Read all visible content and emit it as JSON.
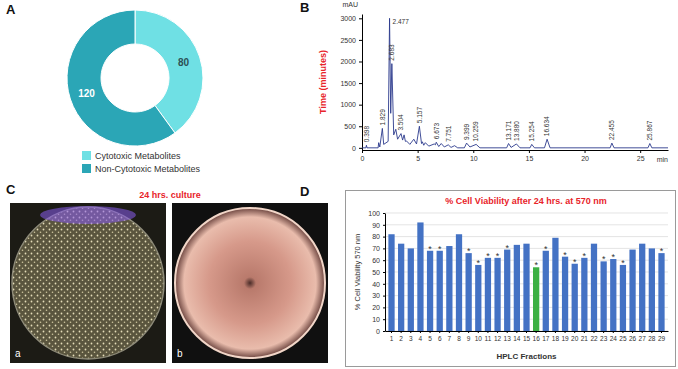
{
  "chart_data": [
    {
      "panel_label": "A",
      "type": "pie",
      "categories": [
        "Cytotoxic Metabolites",
        "Non-Cytotoxic Metabolites"
      ],
      "values": [
        80,
        120
      ],
      "colors": [
        "#6fe0e4",
        "#2ba6b6"
      ],
      "data_labels": true,
      "legend": "bottom"
    },
    {
      "panel_label": "B",
      "type": "line",
      "ylabel": "Time (minutes)",
      "y_unit": "mAU",
      "x_unit": "min",
      "color": "#2b3a8c",
      "x": [
        0,
        0.35,
        0.398,
        0.45,
        1.45,
        1.498,
        1.6,
        1.829,
        1.95,
        2.35,
        2.477,
        2.58,
        2.683,
        2.85,
        3.037,
        3.2,
        3.504,
        3.65,
        3.782,
        3.9,
        3.994,
        4.3,
        4.656,
        4.9,
        5.157,
        5.35,
        5.424,
        5.55,
        5.69,
        6.0,
        6.493,
        6.6,
        6.673,
        6.9,
        7.122,
        7.4,
        7.751,
        8.0,
        8.319,
        8.6,
        9.2,
        9.399,
        9.7,
        10.259,
        10.6,
        13.0,
        13.171,
        13.4,
        13.88,
        14.2,
        15.1,
        15.254,
        15.5,
        16.4,
        16.634,
        16.9,
        22.3,
        22.455,
        22.65,
        25.7,
        25.867,
        26.05,
        27.5
      ],
      "values": [
        0,
        0,
        60,
        0,
        0,
        120,
        20,
        450,
        80,
        150,
        3000,
        800,
        1950,
        300,
        430,
        200,
        330,
        180,
        300,
        150,
        160,
        80,
        200,
        90,
        500,
        100,
        140,
        60,
        120,
        40,
        90,
        70,
        130,
        30,
        100,
        20,
        70,
        10,
        50,
        0,
        0,
        110,
        20,
        80,
        0,
        0,
        100,
        10,
        90,
        0,
        0,
        80,
        0,
        0,
        200,
        0,
        0,
        110,
        0,
        0,
        100,
        0,
        0
      ],
      "xlim": [
        0,
        27.5
      ],
      "ylim": [
        -50,
        3100
      ],
      "xticks": [
        0,
        5,
        10,
        15,
        20,
        25
      ],
      "yticks": [
        0,
        500,
        1000,
        1500,
        2000,
        2500,
        3000
      ],
      "annotations": [
        {
          "x": 0.398,
          "y": 60,
          "text": "0.398"
        },
        {
          "x": 1.829,
          "y": 450,
          "text": "1.829"
        },
        {
          "x": 2.477,
          "y": 3000,
          "text": "2.477"
        },
        {
          "x": 2.683,
          "y": 1950,
          "text": "2.683"
        },
        {
          "x": 3.504,
          "y": 330,
          "text": "3.504"
        },
        {
          "x": 5.157,
          "y": 500,
          "text": "5.157"
        },
        {
          "x": 6.673,
          "y": 130,
          "text": "6.673"
        },
        {
          "x": 7.751,
          "y": 70,
          "text": "7.751"
        },
        {
          "x": 9.399,
          "y": 110,
          "text": "9.399"
        },
        {
          "x": 10.259,
          "y": 80,
          "text": "10.259"
        },
        {
          "x": 13.171,
          "y": 100,
          "text": "13.171"
        },
        {
          "x": 13.88,
          "y": 90,
          "text": "13.880"
        },
        {
          "x": 15.254,
          "y": 80,
          "text": "15.254"
        },
        {
          "x": 16.634,
          "y": 200,
          "text": "16.634"
        },
        {
          "x": 22.455,
          "y": 110,
          "text": "22.455"
        },
        {
          "x": 25.867,
          "y": 100,
          "text": "25.867"
        }
      ]
    },
    {
      "panel_label": "C",
      "type": "image",
      "title": "24 hrs. culture",
      "labels": [
        "a",
        "b"
      ]
    },
    {
      "panel_label": "D",
      "type": "bar",
      "title": "% Cell Viability after 24 hrs. at 570 nm",
      "xlabel": "HPLC Fractions",
      "ylabel": "% Cell Viability 570 nm",
      "categories": [
        "1",
        "2",
        "3",
        "4",
        "5",
        "6",
        "7",
        "8",
        "9",
        "10",
        "11",
        "12",
        "13",
        "14",
        "15",
        "16",
        "17",
        "18",
        "19",
        "20",
        "21",
        "22",
        "23",
        "24",
        "25",
        "26",
        "27",
        "28",
        "29"
      ],
      "values": [
        82,
        74,
        70,
        92,
        68,
        68,
        72,
        82,
        66,
        56,
        62,
        62,
        69,
        73,
        74,
        54,
        68,
        79,
        63,
        57,
        62,
        74,
        59,
        61,
        56,
        69,
        74,
        70,
        66
      ],
      "colors": [
        "#4472c4",
        "#4472c4",
        "#4472c4",
        "#4472c4",
        "#4472c4",
        "#4472c4",
        "#4472c4",
        "#4472c4",
        "#4472c4",
        "#4472c4",
        "#4472c4",
        "#4472c4",
        "#4472c4",
        "#4472c4",
        "#4472c4",
        "#3cb043",
        "#4472c4",
        "#4472c4",
        "#4472c4",
        "#4472c4",
        "#4472c4",
        "#4472c4",
        "#4472c4",
        "#4472c4",
        "#4472c4",
        "#4472c4",
        "#4472c4",
        "#4472c4",
        "#4472c4"
      ],
      "ylim": [
        0,
        100
      ],
      "yticks": [
        0,
        10,
        20,
        30,
        40,
        50,
        60,
        70,
        80,
        90,
        100
      ],
      "grid": true,
      "annotations": [
        {
          "category": "5",
          "text": "*"
        },
        {
          "category": "6",
          "text": "*"
        },
        {
          "category": "9",
          "text": "*"
        },
        {
          "category": "10",
          "text": "*"
        },
        {
          "category": "11",
          "text": "*"
        },
        {
          "category": "12",
          "text": "*"
        },
        {
          "category": "13",
          "text": "*"
        },
        {
          "category": "16",
          "text": "*"
        },
        {
          "category": "17",
          "text": "*"
        },
        {
          "category": "19",
          "text": "*"
        },
        {
          "category": "20",
          "text": "*"
        },
        {
          "category": "21",
          "text": "*"
        },
        {
          "category": "23",
          "text": "*"
        },
        {
          "category": "24",
          "text": "*"
        },
        {
          "category": "25",
          "text": "*"
        },
        {
          "category": "29",
          "text": "*"
        }
      ]
    }
  ]
}
